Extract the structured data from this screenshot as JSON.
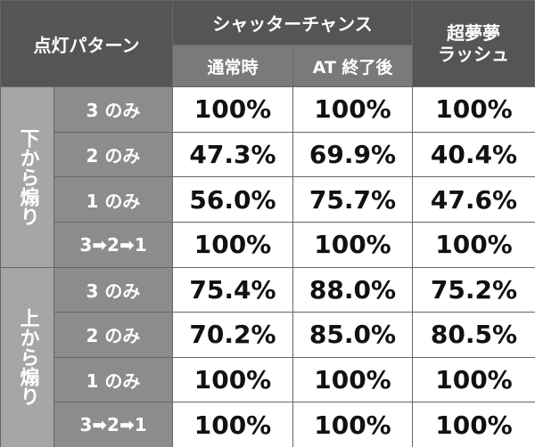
{
  "header": {
    "pattern": "点灯パターン",
    "group": "シャッターチャンス",
    "columns": [
      "通常時",
      "AT 終了後"
    ],
    "rush": [
      "超夢夢",
      "ラッシュ"
    ]
  },
  "groups": [
    {
      "label": "下から煽り",
      "rows": [
        {
          "pattern": "3 のみ",
          "values": [
            "100%",
            "100%",
            "100%"
          ]
        },
        {
          "pattern": "2 のみ",
          "values": [
            "47.3%",
            "69.9%",
            "40.4%"
          ]
        },
        {
          "pattern": "1 のみ",
          "values": [
            "56.0%",
            "75.7%",
            "47.6%"
          ]
        },
        {
          "pattern": "3➡2➡1",
          "values": [
            "100%",
            "100%",
            "100%"
          ]
        }
      ]
    },
    {
      "label": "上から煽り",
      "rows": [
        {
          "pattern": "3 のみ",
          "values": [
            "75.4%",
            "88.0%",
            "75.2%"
          ]
        },
        {
          "pattern": "2 のみ",
          "values": [
            "70.2%",
            "85.0%",
            "80.5%"
          ]
        },
        {
          "pattern": "1 のみ",
          "values": [
            "100%",
            "100%",
            "100%"
          ]
        },
        {
          "pattern": "3➡2➡1",
          "values": [
            "100%",
            "100%",
            "100%"
          ]
        }
      ]
    }
  ]
}
